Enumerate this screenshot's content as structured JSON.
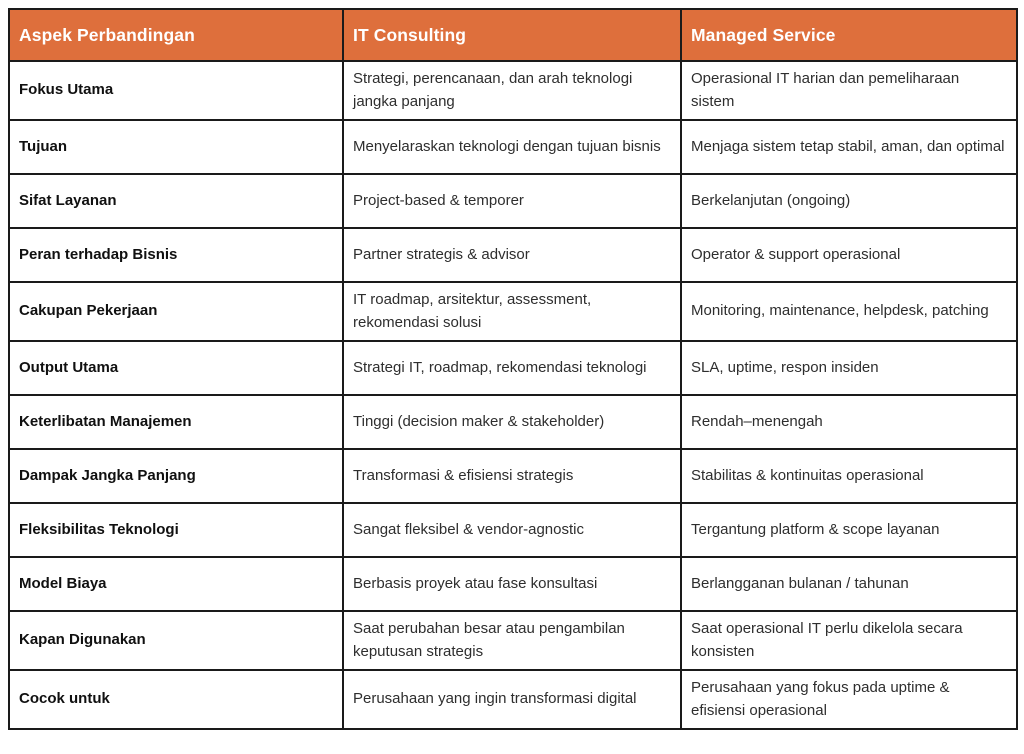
{
  "table": {
    "accent_color": "#de6f3c",
    "border_color": "#1a1a1a",
    "header_text_color": "#ffffff",
    "body_text_color": "#2e2e2e",
    "columns": [
      "Aspek Perbandingan",
      "IT Consulting",
      "Managed Service"
    ],
    "rows": [
      {
        "aspect": "Fokus Utama",
        "it_consulting": "Strategi, perencanaan, dan arah teknologi jangka panjang",
        "managed_service": "Operasional IT harian dan pemeliharaan sistem"
      },
      {
        "aspect": "Tujuan",
        "it_consulting": "Menyelaraskan teknologi dengan tujuan bisnis",
        "managed_service": "Menjaga sistem tetap stabil, aman, dan optimal"
      },
      {
        "aspect": "Sifat Layanan",
        "it_consulting": "Project-based & temporer",
        "managed_service": "Berkelanjutan (ongoing)"
      },
      {
        "aspect": "Peran terhadap Bisnis",
        "it_consulting": "Partner strategis & advisor",
        "managed_service": "Operator & support operasional"
      },
      {
        "aspect": "Cakupan Pekerjaan",
        "it_consulting": "IT roadmap, arsitektur, assessment, rekomendasi solusi",
        "managed_service": "Monitoring, maintenance, helpdesk, patching"
      },
      {
        "aspect": "Output Utama",
        "it_consulting": "Strategi IT, roadmap, rekomendasi teknologi",
        "managed_service": "SLA, uptime, respon insiden"
      },
      {
        "aspect": "Keterlibatan Manajemen",
        "it_consulting": "Tinggi (decision maker & stakeholder)",
        "managed_service": "Rendah–menengah"
      },
      {
        "aspect": "Dampak Jangka Panjang",
        "it_consulting": "Transformasi & efisiensi strategis",
        "managed_service": "Stabilitas & kontinuitas operasional"
      },
      {
        "aspect": "Fleksibilitas Teknologi",
        "it_consulting": "Sangat fleksibel & vendor-agnostic",
        "managed_service": "Tergantung platform & scope layanan"
      },
      {
        "aspect": "Model Biaya",
        "it_consulting": "Berbasis proyek atau fase konsultasi",
        "managed_service": "Berlangganan bulanan / tahunan"
      },
      {
        "aspect": "Kapan Digunakan",
        "it_consulting": "Saat perubahan besar atau pengambilan keputusan strategis",
        "managed_service": "Saat operasional IT perlu dikelola secara konsisten"
      },
      {
        "aspect": "Cocok untuk",
        "it_consulting": "Perusahaan yang ingin transformasi digital",
        "managed_service": "Perusahaan yang fokus pada uptime & efisiensi operasional"
      }
    ]
  }
}
